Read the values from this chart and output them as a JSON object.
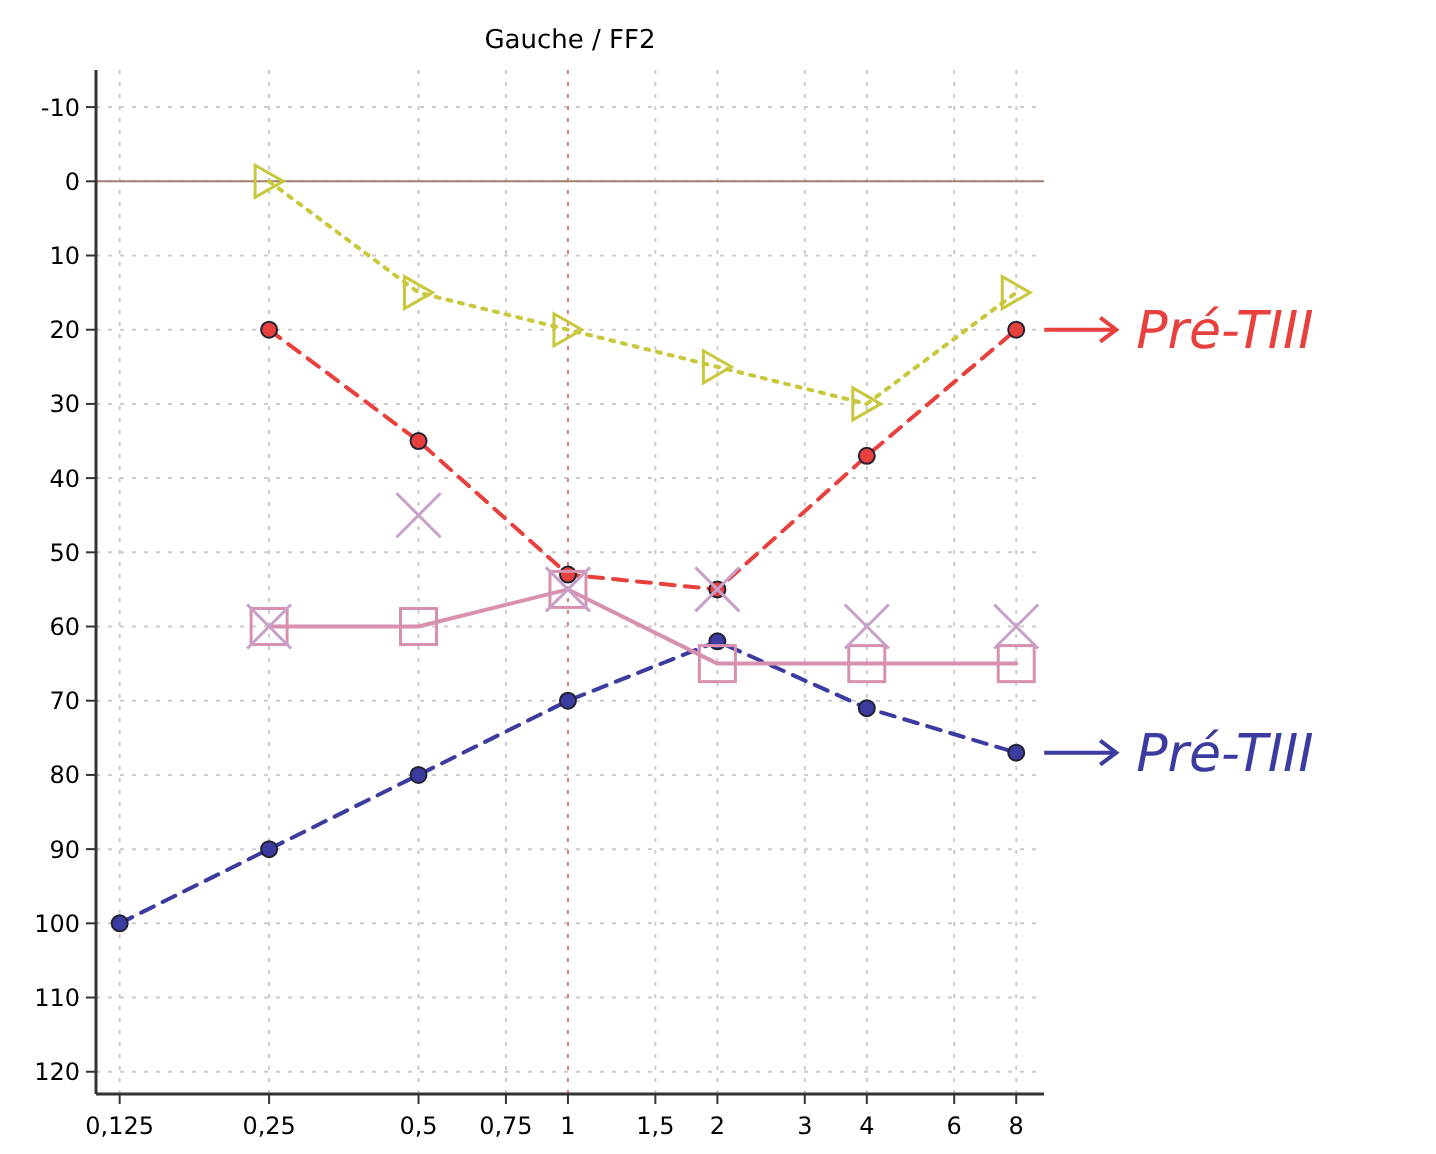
{
  "chart_data": {
    "type": "line",
    "title": "Gauche / FF2",
    "log": "x",
    "xlim": [
      0.112,
      9.1
    ],
    "ylim": [
      123,
      -15
    ],
    "xticks": [
      {
        "value": 0.125,
        "label": "0,125"
      },
      {
        "value": 0.25,
        "label": "0,25"
      },
      {
        "value": 0.5,
        "label": "0,5"
      },
      {
        "value": 0.75,
        "label": "0,75"
      },
      1,
      {
        "value": 1.5,
        "label": "1,5"
      },
      2,
      3,
      4,
      6,
      8
    ],
    "yticks": [
      -10,
      0,
      10,
      20,
      30,
      40,
      50,
      60,
      70,
      80,
      90,
      100,
      110,
      120
    ],
    "grid": true,
    "ref_lines": [
      {
        "axis": "x",
        "value": 1,
        "color": "#e08080",
        "line_style": "dotted"
      },
      {
        "axis": "y",
        "value": 0,
        "color": "#a08070",
        "line_style": "solid"
      }
    ],
    "series": [
      {
        "color": "#c8c83c",
        "marker": "triangle",
        "line_style": "dotted",
        "x": [
          0.25,
          0.5,
          1,
          2,
          4,
          8
        ],
        "values": [
          0,
          15,
          20,
          25,
          30,
          15
        ]
      },
      {
        "color": "#e8403c",
        "marker": "circle",
        "line_style": "dashed",
        "x": [
          0.25,
          0.5,
          1,
          2,
          4,
          8
        ],
        "values": [
          20,
          35,
          53,
          55,
          37,
          20
        ]
      },
      {
        "color": "#3c3ca0",
        "marker": "circle",
        "line_style": "dashed",
        "x": [
          0.125,
          0.25,
          0.5,
          1,
          2,
          4,
          8
        ],
        "values": [
          100,
          90,
          80,
          70,
          62,
          71,
          77
        ]
      },
      {
        "color": "#d890b0",
        "marker": "square",
        "line_style": "solid",
        "x": [
          0.25,
          0.5,
          1,
          2,
          4,
          8
        ],
        "values": [
          60,
          60,
          55,
          65,
          65,
          65
        ]
      },
      {
        "type": "scatter",
        "color": "#c8a0c8",
        "marker": "cross",
        "x": [
          0.25,
          0.5,
          1,
          2,
          4,
          8
        ],
        "values": [
          60,
          45,
          55,
          55,
          60,
          60
        ]
      }
    ],
    "annotations": [
      {
        "text": "Pré-TIII",
        "x": 8,
        "y": 20
      },
      {
        "text": "Pré-TIII",
        "x": 8,
        "y": 77
      }
    ]
  }
}
